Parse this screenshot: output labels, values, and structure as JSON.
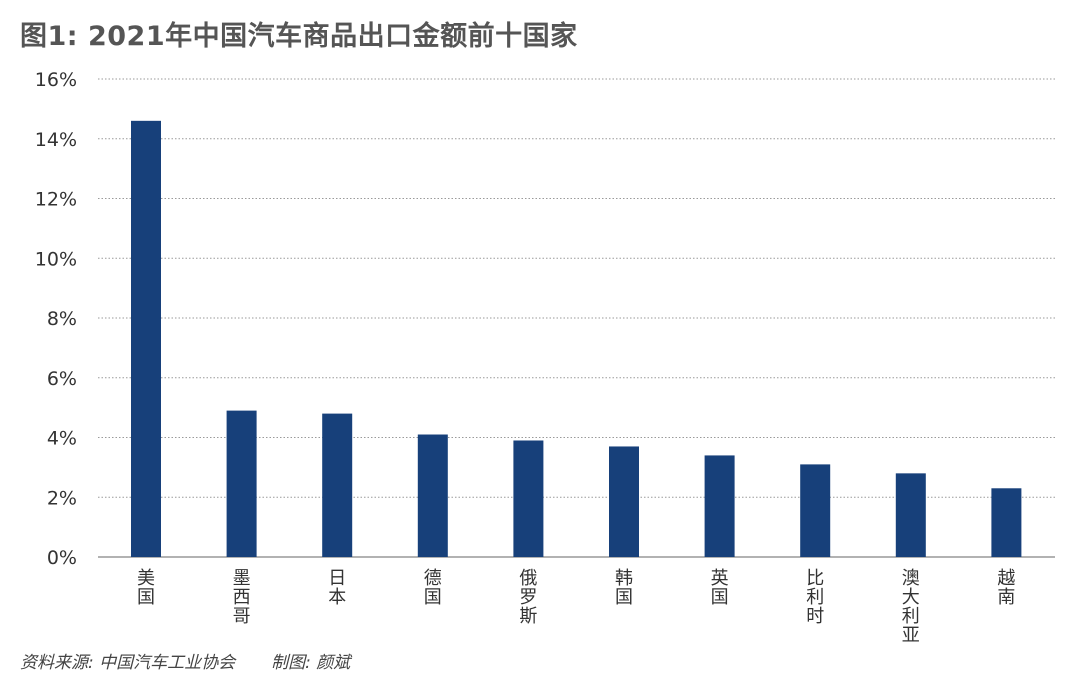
{
  "title": "图1: 2021年中国汽车商品出口金额前十国家",
  "footer": {
    "source": "资料来源: 中国汽车工业协会",
    "author": "制图: 颜斌"
  },
  "chart_data": {
    "type": "bar",
    "categories": [
      "美国",
      "墨西哥",
      "日本",
      "德国",
      "俄罗斯",
      "韩国",
      "英国",
      "比利时",
      "澳大利亚",
      "越南"
    ],
    "values": [
      14.6,
      4.9,
      4.8,
      4.1,
      3.9,
      3.7,
      3.4,
      3.1,
      2.8,
      2.3
    ],
    "unit": "%",
    "ylim": [
      0,
      16
    ],
    "yticks": [
      "0%",
      "2%",
      "4%",
      "6%",
      "8%",
      "10%",
      "12%",
      "14%",
      "16%"
    ],
    "grid": true,
    "bar_color": "#17407a"
  }
}
